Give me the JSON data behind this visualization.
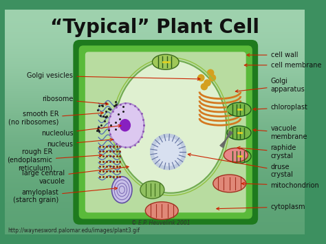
{
  "title": "“Typical” Plant Cell",
  "title_fontsize": 20,
  "title_color": "#111111",
  "url_text": "http://waynesword.palomar.edu/images/plant3.gif",
  "copyright_text": "© E.P. Heuvelink 2001",
  "arrow_color": "#cc2200",
  "label_fontsize": 7.0,
  "label_color": "#111111",
  "bg_outer": "#3d9060",
  "bg_inner": "#c0e0c0",
  "cell_wall_color": "#1a6a1a",
  "cell_fill": "#88c870",
  "cytoplasm_fill": "#c0e0a0",
  "vacuole_fill": "#e8f5e0",
  "nucleus_fill": "#e0c8f0",
  "nucleolus_fill": "#8820c0",
  "chloroplast_fill": "#70b050",
  "chloroplast_stripe": "#2a5a1a",
  "golgi_color": "#d47820",
  "mito_fill": "#e08080",
  "mito_edge": "#a03030",
  "druse_fill": "#b8c8e8",
  "raphide_color": "#888888",
  "amy_fill": "#c8c0e8",
  "amy_edge": "#6050a0",
  "er_color": "#5068b8",
  "ribo_color": "#882200",
  "vesicle_color": "#d4a020"
}
